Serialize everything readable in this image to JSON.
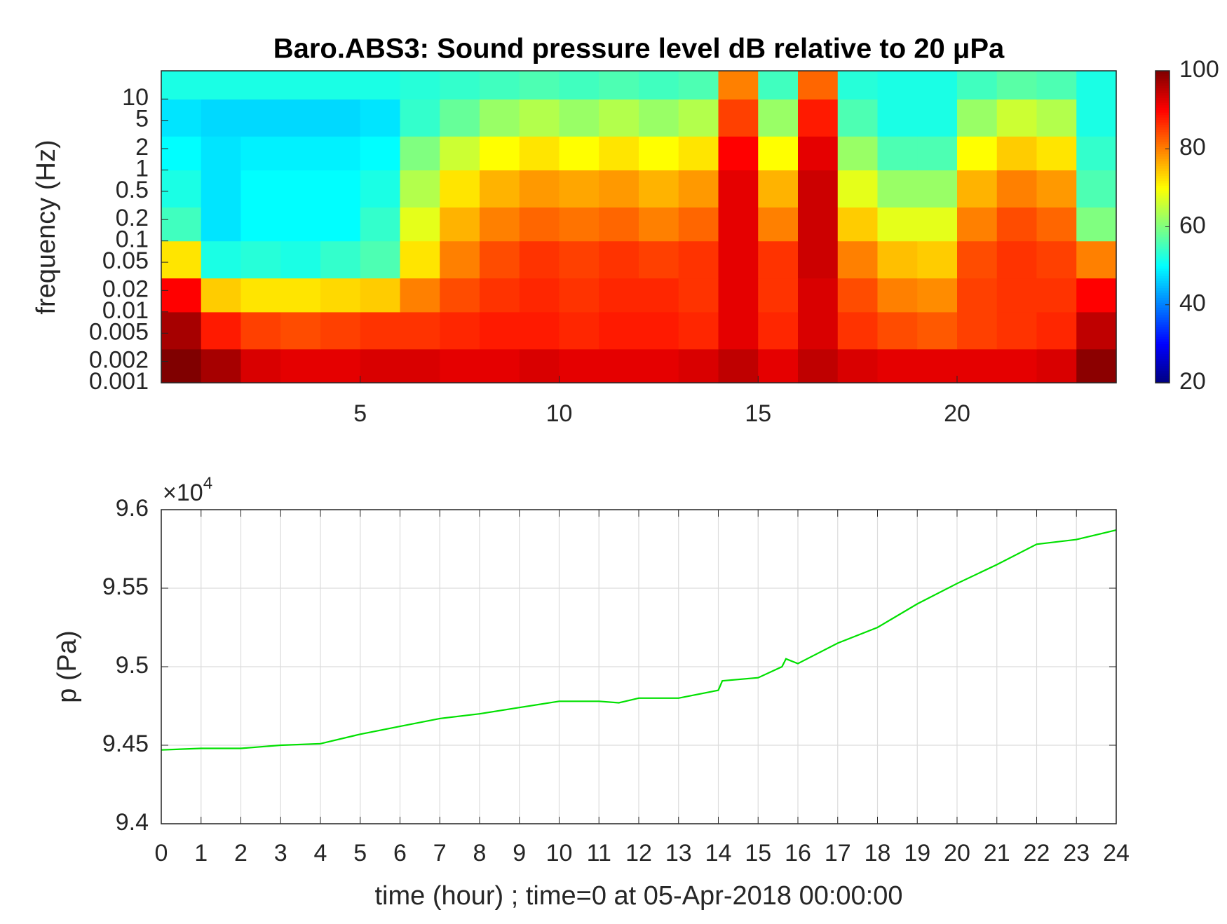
{
  "chart_data": [
    {
      "type": "heatmap",
      "title": "Baro.ABS3: Sound pressure level dB relative to 20 μPa",
      "ylabel": "frequency (Hz)",
      "colormap": "jet",
      "yscale": "log",
      "x_bins": [
        0,
        1,
        2,
        3,
        4,
        5,
        6,
        7,
        8,
        9,
        10,
        11,
        12,
        13,
        14,
        15,
        16,
        17,
        18,
        19,
        20,
        21,
        22,
        23,
        24
      ],
      "y_bins": [
        0.001,
        0.003,
        0.01,
        0.03,
        0.1,
        0.3,
        1,
        3,
        10,
        25
      ],
      "z": [
        [
          100,
          97,
          93,
          92,
          92,
          93,
          93,
          92,
          92,
          93,
          92,
          92,
          92,
          93,
          95,
          92,
          95,
          93,
          92,
          92,
          92,
          92,
          93,
          99
        ],
        [
          97,
          88,
          85,
          84,
          85,
          86,
          86,
          87,
          88,
          88,
          87,
          88,
          88,
          87,
          92,
          87,
          93,
          86,
          84,
          83,
          85,
          86,
          87,
          95
        ],
        [
          90,
          74,
          72,
          72,
          73,
          74,
          80,
          84,
          86,
          87,
          86,
          87,
          87,
          86,
          92,
          86,
          93,
          84,
          80,
          79,
          85,
          86,
          86,
          90
        ],
        [
          72,
          52,
          53,
          52,
          54,
          56,
          72,
          80,
          84,
          86,
          85,
          86,
          85,
          86,
          92,
          86,
          94,
          80,
          75,
          74,
          84,
          86,
          85,
          80
        ],
        [
          55,
          48,
          50,
          50,
          50,
          54,
          68,
          76,
          80,
          82,
          81,
          82,
          80,
          82,
          92,
          80,
          94,
          74,
          68,
          68,
          80,
          84,
          82,
          60
        ],
        [
          52,
          48,
          50,
          50,
          50,
          52,
          64,
          72,
          76,
          78,
          77,
          78,
          76,
          78,
          92,
          76,
          94,
          68,
          62,
          62,
          76,
          80,
          78,
          56
        ],
        [
          50,
          48,
          49,
          49,
          49,
          50,
          60,
          66,
          70,
          72,
          70,
          72,
          70,
          72,
          90,
          70,
          92,
          62,
          56,
          56,
          70,
          74,
          72,
          54
        ],
        [
          48,
          47,
          47,
          47,
          47,
          48,
          54,
          58,
          62,
          64,
          62,
          64,
          62,
          64,
          85,
          62,
          88,
          56,
          52,
          52,
          62,
          66,
          64,
          52
        ],
        [
          52,
          52,
          52,
          52,
          52,
          52,
          53,
          54,
          55,
          56,
          55,
          56,
          55,
          56,
          80,
          55,
          82,
          53,
          52,
          52,
          55,
          57,
          56,
          52
        ]
      ],
      "xlim": [
        0,
        24
      ],
      "xticks": [
        5,
        10,
        15,
        20
      ],
      "ylim": [
        0.001,
        25
      ],
      "yticks": [
        0.001,
        0.002,
        0.005,
        0.01,
        0.02,
        0.05,
        0.1,
        0.2,
        0.5,
        1,
        2,
        5,
        10
      ],
      "clim": [
        20,
        100
      ],
      "cticks": [
        20,
        40,
        60,
        80,
        100
      ]
    },
    {
      "type": "line",
      "xlabel": "time (hour) ; time=0 at 05-Apr-2018 00:00:00",
      "ylabel": "p (Pa)",
      "multiplier": {
        "base": "×10",
        "exponent": "4"
      },
      "x": [
        0,
        1,
        2,
        3,
        4,
        5,
        6,
        7,
        8,
        9,
        10,
        11,
        11.5,
        12,
        13,
        14,
        14.1,
        15,
        15.6,
        15.7,
        16,
        17,
        18,
        19,
        20,
        21,
        22,
        23,
        24
      ],
      "values": [
        9.447,
        9.448,
        9.448,
        9.45,
        9.451,
        9.457,
        9.462,
        9.467,
        9.47,
        9.474,
        9.478,
        9.478,
        9.477,
        9.48,
        9.48,
        9.485,
        9.491,
        9.493,
        9.5,
        9.505,
        9.502,
        9.515,
        9.525,
        9.54,
        9.553,
        9.565,
        9.578,
        9.581,
        9.587
      ],
      "color": "#00e000",
      "xlim": [
        0,
        24
      ],
      "xticks": [
        0,
        1,
        2,
        3,
        4,
        5,
        6,
        7,
        8,
        9,
        10,
        11,
        12,
        13,
        14,
        15,
        16,
        17,
        18,
        19,
        20,
        21,
        22,
        23,
        24
      ],
      "ylim": [
        9.4,
        9.6
      ],
      "yticks": [
        9.4,
        9.45,
        9.5,
        9.55,
        9.6
      ],
      "grid": true
    }
  ]
}
